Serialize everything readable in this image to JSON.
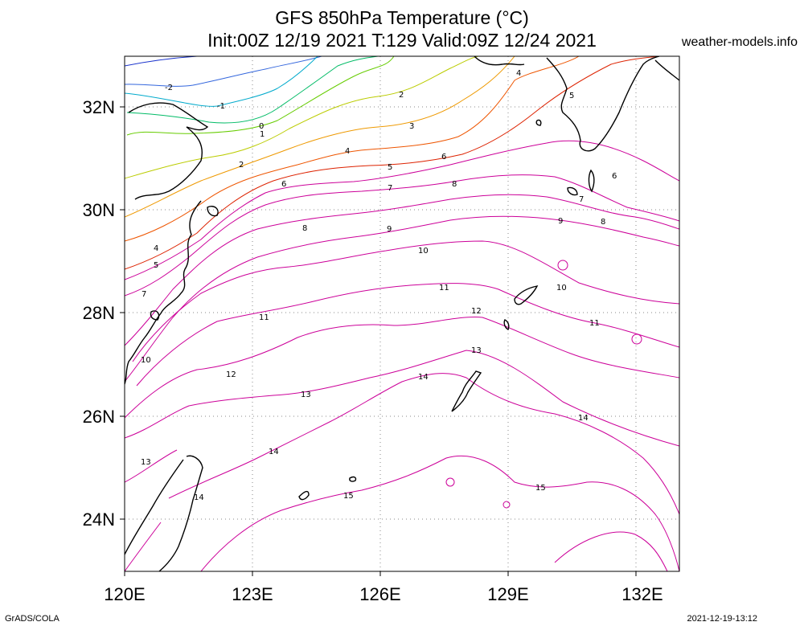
{
  "title_line1": "GFS 850hPa Temperature (°C)",
  "title_line2": "Init:00Z 12/19 2021 T:129 Valid:09Z 12/24 2021",
  "site": "weather-models.info",
  "footer_left": "GrADS/COLA",
  "footer_right": "2021-12-19-13:12",
  "map": {
    "lon_range": [
      120,
      133
    ],
    "lat_range": [
      23,
      33
    ],
    "lon_ticks": [
      "120E",
      "123E",
      "126E",
      "129E",
      "132E"
    ],
    "lat_ticks": [
      "32N",
      "30N",
      "28N",
      "26N",
      "24N"
    ],
    "gridlines": "dotted",
    "contour_labels": [
      "-2",
      "-1",
      "0",
      "1",
      "2",
      "3",
      "4",
      "5",
      "6",
      "7",
      "8",
      "9",
      "10",
      "11",
      "12",
      "13",
      "14",
      "15"
    ]
  },
  "colors": {
    "warm": "#cc0099",
    "cold": "#1a33cc",
    "coast": "#000000"
  }
}
